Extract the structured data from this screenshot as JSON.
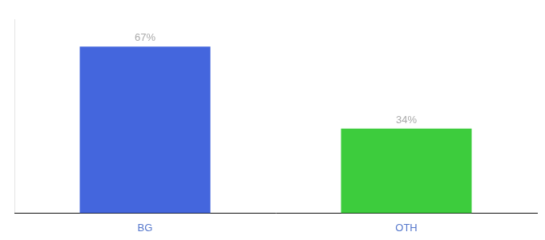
{
  "chart_data": {
    "type": "bar",
    "categories": [
      "BG",
      "OTH"
    ],
    "values": [
      67,
      34
    ],
    "value_labels": [
      "67%",
      "34%"
    ],
    "colors": [
      "#4466dd",
      "#3dcc3d"
    ],
    "ylim": [
      0,
      78
    ],
    "grid": false,
    "data_labels": true,
    "tick_labels": "x"
  }
}
